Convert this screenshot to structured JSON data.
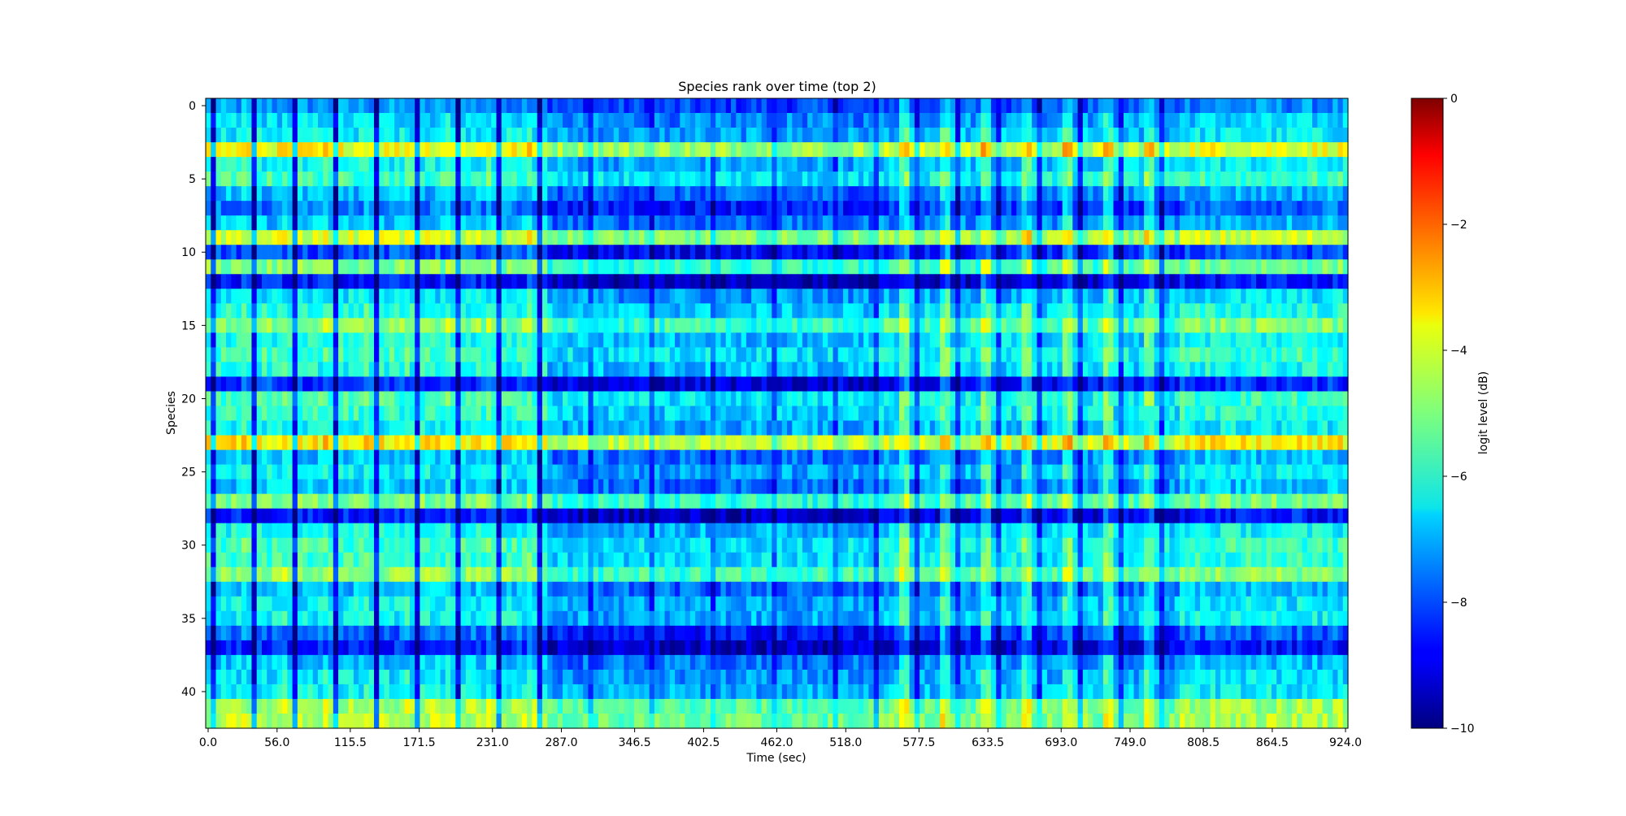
{
  "chart_data": {
    "type": "heatmap",
    "title": "Species rank over time (top 2)",
    "xlabel": "Time (sec)",
    "ylabel": "Species",
    "colorbar_label": "logit level (dB)",
    "colormap": "jet",
    "value_range": [
      -10,
      0
    ],
    "xlim": [
      0.0,
      924.0
    ],
    "ylim": [
      42.5,
      -0.5
    ],
    "x_ticks": [
      0.0,
      56.0,
      115.5,
      171.5,
      231.0,
      287.0,
      346.5,
      402.5,
      462.0,
      518.0,
      577.5,
      633.5,
      693.0,
      749.0,
      808.5,
      864.5,
      924.0
    ],
    "x_tick_labels": [
      "0.0",
      "56.0",
      "115.5",
      "171.5",
      "231.0",
      "287.0",
      "346.5",
      "402.5",
      "462.0",
      "518.0",
      "577.5",
      "633.5",
      "693.0",
      "749.0",
      "808.5",
      "864.5",
      "924.0"
    ],
    "y_ticks": [
      0,
      5,
      10,
      15,
      20,
      25,
      30,
      35,
      40
    ],
    "y_tick_labels": [
      "0",
      "5",
      "10",
      "15",
      "20",
      "25",
      "30",
      "35",
      "40"
    ],
    "colorbar_ticks": [
      0,
      -2,
      -4,
      -6,
      -8,
      -10
    ],
    "colorbar_tick_labels": [
      "0",
      "−2",
      "−4",
      "−6",
      "−8",
      "−10"
    ],
    "n_species": 43,
    "n_time_bins": 224,
    "species_base_levels": [
      -7.3,
      -6.6,
      -6.3,
      -3.8,
      -6.2,
      -5.6,
      -6.9,
      -7.6,
      -6.8,
      -4.2,
      -8.0,
      -5.0,
      -8.6,
      -6.4,
      -5.9,
      -4.9,
      -6.0,
      -5.6,
      -6.0,
      -8.2,
      -5.6,
      -5.8,
      -6.2,
      -3.6,
      -6.8,
      -6.3,
      -6.8,
      -5.0,
      -8.5,
      -6.1,
      -5.6,
      -5.7,
      -4.8,
      -6.9,
      -6.3,
      -6.2,
      -7.7,
      -8.4,
      -6.8,
      -6.4,
      -6.2,
      -4.6,
      -4.4
    ],
    "grid": false,
    "legend": "colorbar-right"
  }
}
